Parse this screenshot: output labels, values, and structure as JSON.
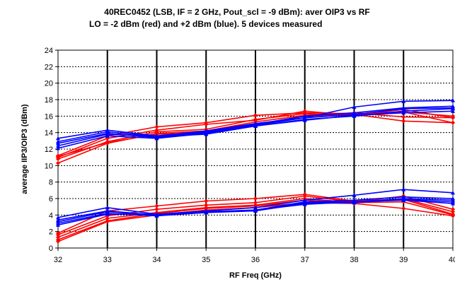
{
  "chart_data": {
    "type": "line",
    "title": "40REC0452 (LSB, IF = 2 GHz, Pout_scl = -9 dBm): aver OIP3 vs RF",
    "subtitle": "LO = -2 dBm (red) and +2 dBm (blue). 5 devices measured",
    "xlabel": "RF Freq (GHz)",
    "ylabel": "average IIP3/OIP3 (dBm)",
    "xlim": [
      32,
      40
    ],
    "ylim": [
      0,
      24
    ],
    "x_ticks": [
      32,
      33,
      34,
      35,
      36,
      37,
      38,
      39,
      40
    ],
    "y_ticks": [
      0,
      2,
      4,
      6,
      8,
      10,
      12,
      14,
      16,
      18,
      20,
      22,
      24
    ],
    "grid": true,
    "legend": "none",
    "colors": {
      "red": "#ff0000",
      "blue": "#0000ff"
    },
    "x": [
      32,
      33,
      34,
      35,
      36,
      37,
      38,
      39,
      40
    ],
    "series": [
      {
        "color": "red",
        "group": "OIP3",
        "values": [
          11.2,
          13.6,
          14.7,
          15.2,
          16.1,
          16.4,
          16.3,
          16.5,
          15.2
        ]
      },
      {
        "color": "red",
        "group": "OIP3",
        "values": [
          11.0,
          13.3,
          14.3,
          15.0,
          15.5,
          16.6,
          16.1,
          16.8,
          15.8
        ]
      },
      {
        "color": "red",
        "group": "OIP3",
        "values": [
          10.8,
          12.9,
          14.1,
          14.4,
          15.6,
          16.3,
          16.0,
          16.5,
          16.0
        ]
      },
      {
        "color": "red",
        "group": "OIP3",
        "values": [
          10.3,
          12.7,
          13.9,
          14.2,
          15.3,
          16.1,
          16.4,
          15.9,
          15.8
        ]
      },
      {
        "color": "red",
        "group": "OIP3",
        "values": [
          11.1,
          12.8,
          13.8,
          14.0,
          15.0,
          16.0,
          16.2,
          15.4,
          15.2
        ]
      },
      {
        "color": "blue",
        "group": "OIP3",
        "values": [
          13.3,
          14.3,
          13.6,
          14.2,
          15.1,
          15.8,
          17.1,
          17.8,
          17.9
        ]
      },
      {
        "color": "blue",
        "group": "OIP3",
        "values": [
          12.9,
          14.1,
          13.5,
          14.1,
          15.0,
          16.0,
          16.4,
          17.0,
          17.2
        ]
      },
      {
        "color": "blue",
        "group": "OIP3",
        "values": [
          12.7,
          13.9,
          13.4,
          14.0,
          14.9,
          15.8,
          16.2,
          16.9,
          17.0
        ]
      },
      {
        "color": "blue",
        "group": "OIP3",
        "values": [
          12.4,
          13.8,
          13.5,
          13.8,
          14.8,
          15.6,
          16.0,
          16.6,
          16.9
        ]
      },
      {
        "color": "blue",
        "group": "OIP3",
        "values": [
          12.1,
          13.6,
          13.3,
          13.9,
          14.8,
          15.5,
          16.1,
          16.4,
          16.6
        ]
      },
      {
        "color": "red",
        "group": "IIP3",
        "values": [
          1.8,
          4.5,
          5.1,
          5.7,
          6.0,
          6.5,
          5.7,
          5.9,
          4.1
        ]
      },
      {
        "color": "red",
        "group": "IIP3",
        "values": [
          1.6,
          3.9,
          4.7,
          5.2,
          5.5,
          6.3,
          5.6,
          6.3,
          4.7
        ]
      },
      {
        "color": "red",
        "group": "IIP3",
        "values": [
          1.3,
          3.6,
          4.3,
          4.9,
          5.2,
          6.0,
          5.5,
          6.0,
          4.4
        ]
      },
      {
        "color": "red",
        "group": "IIP3",
        "values": [
          1.0,
          3.3,
          4.2,
          4.8,
          5.1,
          5.8,
          5.5,
          5.6,
          4.0
        ]
      },
      {
        "color": "red",
        "group": "IIP3",
        "values": [
          0.8,
          3.2,
          4.0,
          4.6,
          4.9,
          5.5,
          5.4,
          4.8,
          3.9
        ]
      },
      {
        "color": "blue",
        "group": "IIP3",
        "values": [
          3.7,
          4.9,
          4.1,
          4.5,
          4.9,
          5.8,
          6.4,
          7.1,
          6.7
        ]
      },
      {
        "color": "blue",
        "group": "IIP3",
        "values": [
          3.4,
          4.5,
          4.0,
          4.4,
          4.6,
          5.6,
          5.8,
          6.2,
          6.0
        ]
      },
      {
        "color": "blue",
        "group": "IIP3",
        "values": [
          3.2,
          4.4,
          4.0,
          4.3,
          4.6,
          5.5,
          5.6,
          6.0,
          5.8
        ]
      },
      {
        "color": "blue",
        "group": "IIP3",
        "values": [
          3.0,
          4.2,
          3.9,
          4.3,
          4.5,
          5.4,
          5.5,
          5.9,
          5.6
        ]
      },
      {
        "color": "blue",
        "group": "IIP3",
        "values": [
          2.8,
          4.1,
          4.1,
          4.4,
          4.6,
          5.3,
          5.6,
          5.8,
          5.4
        ]
      }
    ]
  }
}
